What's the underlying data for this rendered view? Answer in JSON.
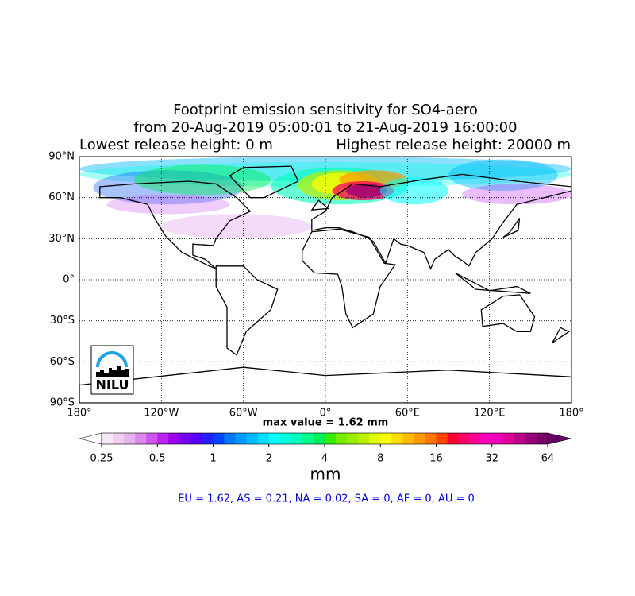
{
  "chart_data": {
    "type": "map",
    "title": [
      "Footprint emission sensitivity for SO4-aero",
      "from 20-Aug-2019 05:00:01 to 21-Aug-2019 16:00:00"
    ],
    "subtitle_left": "Lowest release height: 0 m",
    "subtitle_right": "Highest release height: 20000 m",
    "xlim": [
      -180,
      180
    ],
    "ylim": [
      -90,
      90
    ],
    "xticks": [
      {
        "value": -180,
        "label": "180°"
      },
      {
        "value": -120,
        "label": "120°W"
      },
      {
        "value": -60,
        "label": "60°W"
      },
      {
        "value": 0,
        "label": "0°"
      },
      {
        "value": 60,
        "label": "60°E"
      },
      {
        "value": 120,
        "label": "120°E"
      },
      {
        "value": 180,
        "label": "180°"
      }
    ],
    "yticks": [
      {
        "value": -90,
        "label": "90°S"
      },
      {
        "value": -60,
        "label": "60°S"
      },
      {
        "value": -30,
        "label": "30°S"
      },
      {
        "value": 0,
        "label": "0°"
      },
      {
        "value": 30,
        "label": "30°N"
      },
      {
        "value": 60,
        "label": "60°N"
      },
      {
        "value": 90,
        "label": "90°N"
      }
    ],
    "grid": true,
    "logo": "NILU",
    "max_label": "max value = 1.62 mm",
    "colorbar": {
      "lim": [
        0.25,
        64
      ],
      "log": true,
      "ticks": [
        0.25,
        0.5,
        1,
        2,
        4,
        8,
        16,
        32,
        64
      ],
      "label": "mm",
      "under_color": "#ffffff",
      "over_color": "#660066",
      "colors": [
        "#f7e6f7",
        "#f0ccf0",
        "#e6b3ee",
        "#dd88ee",
        "#cc55ee",
        "#bb22ee",
        "#9900ee",
        "#7700ee",
        "#5500ff",
        "#2222ff",
        "#0044ff",
        "#0077ff",
        "#0099ff",
        "#00bbff",
        "#00ddff",
        "#00ffff",
        "#00ffdd",
        "#00ffbb",
        "#00ff88",
        "#00ee55",
        "#33ee00",
        "#77ee00",
        "#99ee00",
        "#bbee00",
        "#ddff00",
        "#ffff00",
        "#ffdd00",
        "#ffbb00",
        "#ff9900",
        "#ff7700",
        "#ff4400",
        "#ff0033",
        "#ff0066",
        "#ff0099",
        "#ff00bb",
        "#ee00bb",
        "#dd0099",
        "#bb0088",
        "#990077",
        "#770066"
      ]
    },
    "regions_label": "EU = 1.62,  AS = 0.21,  NA = 0.02,  SA = 0,  AF = 0,  AU = 0"
  }
}
